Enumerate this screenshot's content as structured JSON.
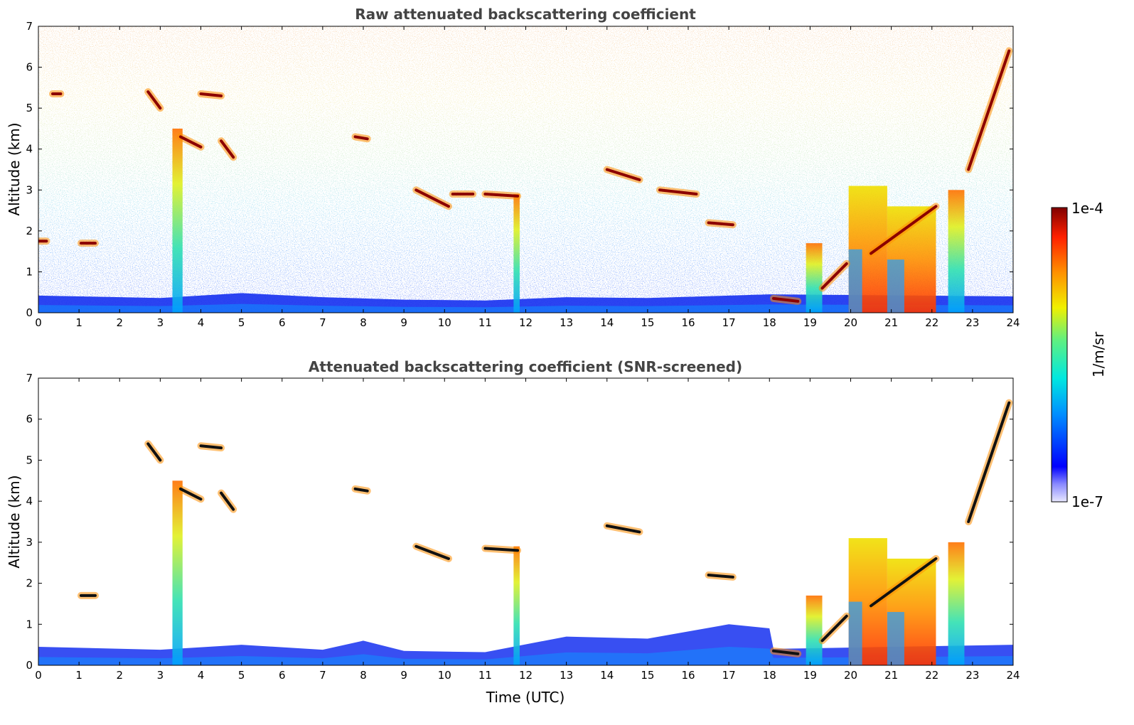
{
  "chart_data": [
    {
      "type": "heatmap",
      "title": "Raw attenuated backscattering coefficient",
      "xlabel": "",
      "ylabel": "Altitude (km)",
      "xlim": [
        0,
        24
      ],
      "ylim": [
        0,
        7
      ],
      "xticks": [
        0,
        1,
        2,
        3,
        4,
        5,
        6,
        7,
        8,
        9,
        10,
        11,
        12,
        13,
        14,
        15,
        16,
        17,
        18,
        19,
        20,
        21,
        22,
        23,
        24
      ],
      "yticks": [
        0,
        1,
        2,
        3,
        4,
        5,
        6,
        7
      ],
      "grid": false,
      "boundary_layer": [
        [
          0,
          0.42
        ],
        [
          3,
          0.36
        ],
        [
          5,
          0.48
        ],
        [
          7,
          0.38
        ],
        [
          9,
          0.32
        ],
        [
          11,
          0.3
        ],
        [
          13,
          0.38
        ],
        [
          15,
          0.36
        ],
        [
          17,
          0.42
        ],
        [
          18,
          0.45
        ],
        [
          24,
          0.4
        ]
      ],
      "cloud_layers": [
        {
          "x": [
            0.0,
            0.2
          ],
          "y": [
            1.75,
            1.75
          ]
        },
        {
          "x": [
            1.05,
            1.4
          ],
          "y": [
            1.7,
            1.7
          ]
        },
        {
          "x": [
            0.35,
            0.55
          ],
          "y": [
            5.35,
            5.35
          ]
        },
        {
          "x": [
            2.7,
            3.0
          ],
          "y": [
            5.4,
            5.0
          ]
        },
        {
          "x": [
            3.5,
            4.0
          ],
          "y": [
            4.3,
            4.05
          ]
        },
        {
          "x": [
            4.0,
            4.5
          ],
          "y": [
            5.35,
            5.3
          ]
        },
        {
          "x": [
            4.5,
            4.8
          ],
          "y": [
            4.2,
            3.8
          ]
        },
        {
          "x": [
            7.8,
            8.1
          ],
          "y": [
            4.3,
            4.25
          ]
        },
        {
          "x": [
            9.3,
            10.1
          ],
          "y": [
            3.0,
            2.6
          ]
        },
        {
          "x": [
            10.2,
            10.7
          ],
          "y": [
            2.9,
            2.9
          ]
        },
        {
          "x": [
            11.0,
            11.8
          ],
          "y": [
            2.9,
            2.85
          ]
        },
        {
          "x": [
            14.0,
            14.8
          ],
          "y": [
            3.5,
            3.25
          ]
        },
        {
          "x": [
            15.3,
            16.2
          ],
          "y": [
            3.0,
            2.9
          ]
        },
        {
          "x": [
            16.5,
            17.1
          ],
          "y": [
            2.2,
            2.15
          ]
        },
        {
          "x": [
            18.1,
            18.7
          ],
          "y": [
            0.35,
            0.28
          ]
        },
        {
          "x": [
            19.3,
            19.9
          ],
          "y": [
            0.6,
            1.2
          ]
        },
        {
          "x": [
            20.5,
            22.1
          ],
          "y": [
            1.45,
            2.6
          ]
        },
        {
          "x": [
            22.9,
            23.9
          ],
          "y": [
            3.5,
            6.4
          ]
        }
      ],
      "deep_plumes": [
        {
          "x": [
            3.3,
            3.55
          ],
          "top": 4.5
        },
        {
          "x": [
            11.7,
            11.85
          ],
          "top": 2.9
        },
        {
          "x": [
            18.9,
            19.3
          ],
          "top": 1.7
        },
        {
          "x": [
            19.95,
            20.9
          ],
          "top": 3.1
        },
        {
          "x": [
            20.9,
            22.1
          ],
          "top": 2.6
        },
        {
          "x": [
            22.4,
            22.8
          ],
          "top": 3.0
        }
      ],
      "colorscale": {
        "label": "1/m/sr",
        "min": "1e-7",
        "max": "1e-4",
        "scale": "log",
        "colormap": "jet"
      }
    },
    {
      "type": "heatmap",
      "title": "Attenuated backscattering coefficient (SNR-screened)",
      "xlabel": "Time (UTC)",
      "ylabel": "Altitude (km)",
      "xlim": [
        0,
        24
      ],
      "ylim": [
        0,
        7
      ],
      "xticks": [
        0,
        1,
        2,
        3,
        4,
        5,
        6,
        7,
        8,
        9,
        10,
        11,
        12,
        13,
        14,
        15,
        16,
        17,
        18,
        19,
        20,
        21,
        22,
        23,
        24
      ],
      "yticks": [
        0,
        1,
        2,
        3,
        4,
        5,
        6,
        7
      ],
      "grid": false,
      "boundary_layer": [
        [
          0,
          0.45
        ],
        [
          3,
          0.38
        ],
        [
          5,
          0.5
        ],
        [
          7,
          0.38
        ],
        [
          8,
          0.6
        ],
        [
          9,
          0.35
        ],
        [
          11,
          0.32
        ],
        [
          13,
          0.7
        ],
        [
          15,
          0.65
        ],
        [
          17,
          1.0
        ],
        [
          18,
          0.9
        ],
        [
          18.1,
          0.4
        ],
        [
          24,
          0.5
        ]
      ],
      "cloud_layers": [
        {
          "x": [
            1.05,
            1.4
          ],
          "y": [
            1.7,
            1.7
          ]
        },
        {
          "x": [
            2.7,
            3.0
          ],
          "y": [
            5.4,
            5.0
          ]
        },
        {
          "x": [
            3.5,
            4.0
          ],
          "y": [
            4.3,
            4.05
          ]
        },
        {
          "x": [
            4.0,
            4.5
          ],
          "y": [
            5.35,
            5.3
          ]
        },
        {
          "x": [
            4.5,
            4.8
          ],
          "y": [
            4.2,
            3.8
          ]
        },
        {
          "x": [
            7.8,
            8.1
          ],
          "y": [
            4.3,
            4.25
          ]
        },
        {
          "x": [
            9.3,
            10.1
          ],
          "y": [
            2.9,
            2.6
          ]
        },
        {
          "x": [
            11.0,
            11.8
          ],
          "y": [
            2.85,
            2.8
          ]
        },
        {
          "x": [
            14.0,
            14.8
          ],
          "y": [
            3.4,
            3.25
          ]
        },
        {
          "x": [
            16.5,
            17.1
          ],
          "y": [
            2.2,
            2.15
          ]
        },
        {
          "x": [
            18.1,
            18.7
          ],
          "y": [
            0.35,
            0.28
          ]
        },
        {
          "x": [
            19.3,
            19.9
          ],
          "y": [
            0.6,
            1.2
          ]
        },
        {
          "x": [
            20.5,
            22.1
          ],
          "y": [
            1.45,
            2.6
          ]
        },
        {
          "x": [
            22.9,
            23.9
          ],
          "y": [
            3.5,
            6.4
          ]
        }
      ],
      "deep_plumes": [
        {
          "x": [
            3.3,
            3.55
          ],
          "top": 4.5
        },
        {
          "x": [
            11.7,
            11.85
          ],
          "top": 2.9
        },
        {
          "x": [
            18.9,
            19.3
          ],
          "top": 1.7
        },
        {
          "x": [
            19.95,
            20.9
          ],
          "top": 3.1
        },
        {
          "x": [
            20.9,
            22.1
          ],
          "top": 2.6
        },
        {
          "x": [
            22.4,
            22.8
          ],
          "top": 3.0
        }
      ],
      "colorscale": {
        "label": "1/m/sr",
        "min": "1e-7",
        "max": "1e-4",
        "scale": "log",
        "colormap": "jet"
      }
    }
  ],
  "colorbar": {
    "label": "1/m/sr",
    "min_label": "1e-7",
    "max_label": "1e-4"
  },
  "colors": {
    "noise_low": "#0a3cff",
    "cloud_top": "#8b0000",
    "title": "#444444"
  }
}
